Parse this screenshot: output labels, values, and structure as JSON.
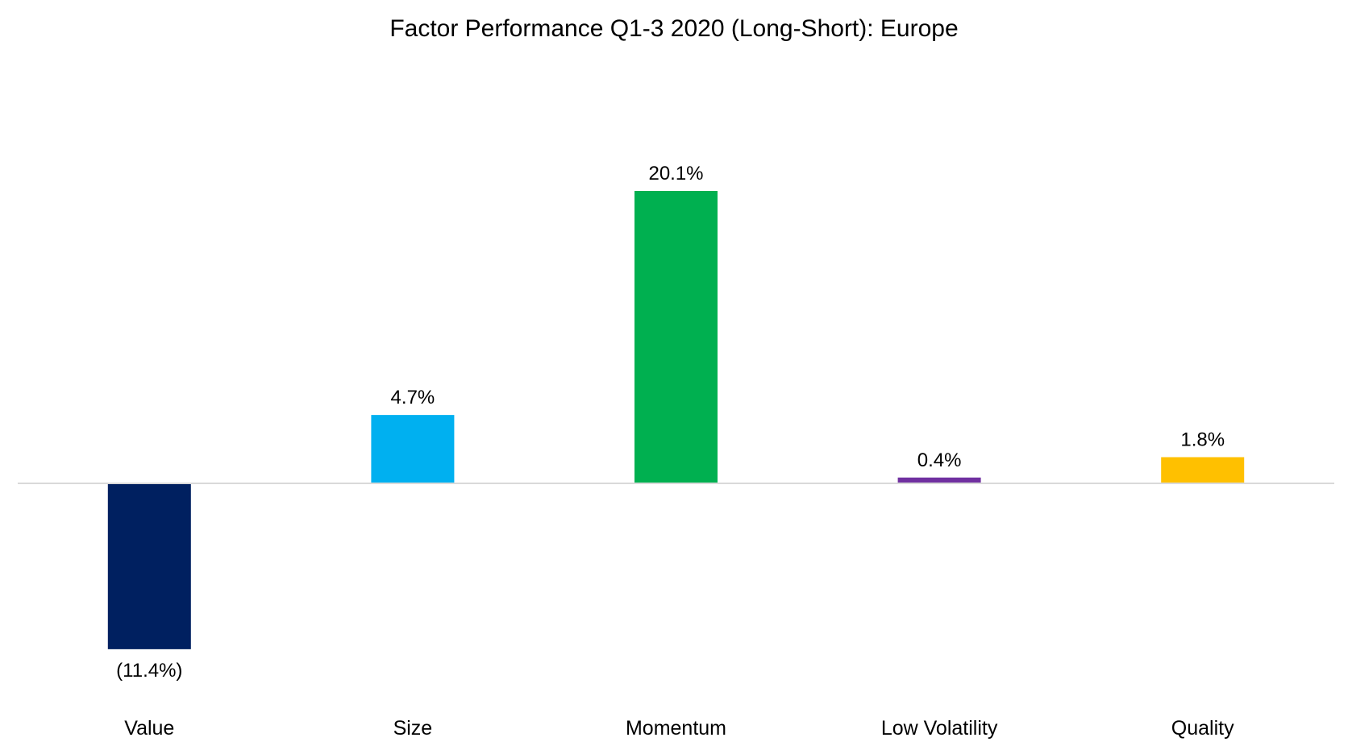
{
  "chart_data": {
    "type": "bar",
    "title": "Factor Performance Q1-3 2020 (Long-Short): Europe",
    "xlabel": "",
    "ylabel": "",
    "categories": [
      "Value",
      "Size",
      "Momentum",
      "Low Volatility",
      "Quality"
    ],
    "values": [
      -11.4,
      4.7,
      20.1,
      0.4,
      1.8
    ],
    "data_labels": [
      "(11.4%)",
      "4.7%",
      "20.1%",
      "0.4%",
      "1.8%"
    ],
    "colors": [
      "#002060",
      "#00B0F0",
      "#00B050",
      "#7030A0",
      "#FFC000"
    ],
    "ylim": [
      -11.4,
      20.1
    ],
    "grid": false,
    "legend": "none",
    "baseline_color": "#D9D9D9"
  }
}
